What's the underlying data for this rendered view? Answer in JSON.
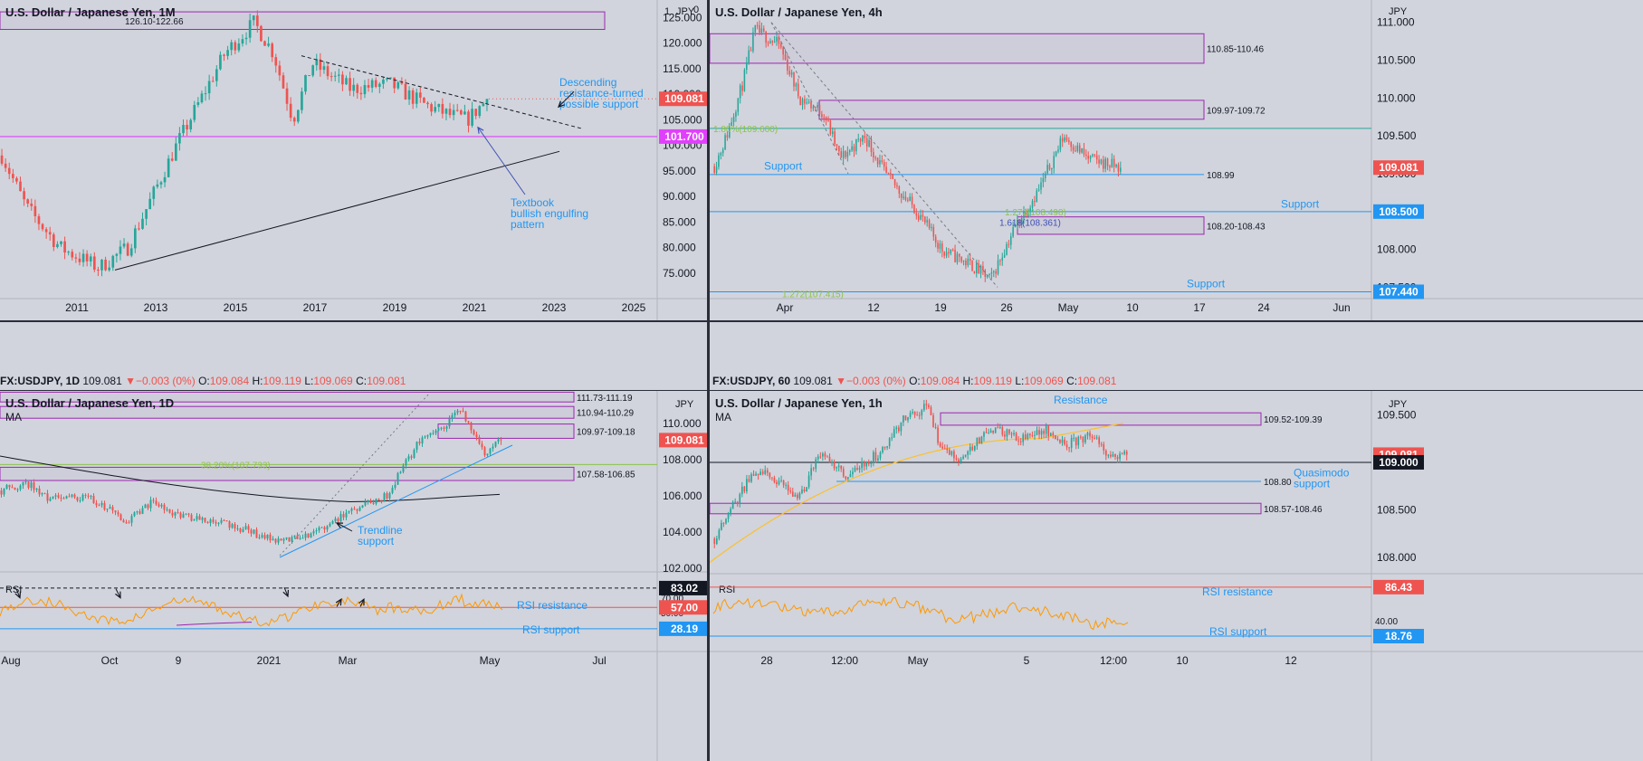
{
  "panels": [
    {
      "id": "p1",
      "title": "U.S. Dollar / Japanese Yen, 1M",
      "ma": "",
      "currency": "JPY",
      "extra_label": "1",
      "extra_label2": "0"
    },
    {
      "id": "p2",
      "title": "U.S. Dollar / Japanese Yen, 4h",
      "ma": "",
      "currency": "JPY"
    },
    {
      "id": "p3",
      "title": "U.S. Dollar / Japanese Yen, 1D",
      "ma": "MA",
      "currency": "JPY"
    },
    {
      "id": "p4",
      "title": "U.S. Dollar / Japanese Yen, 1h",
      "ma": "MA",
      "currency": "JPY"
    }
  ],
  "status_bars": [
    {
      "symbol": "FX:USDJPY, 1D",
      "price": "109.081",
      "arrow": "▼",
      "change": "−0.003 (0%)",
      "o_label": "O:",
      "o": "109.084",
      "h_label": "H:",
      "h": "109.119",
      "l_label": "L:",
      "l": "109.069",
      "c_label": "C:",
      "c": "109.081"
    },
    {
      "symbol": "FX:USDJPY, 60",
      "price": "109.081",
      "arrow": "▼",
      "change": "−0.003 (0%)",
      "o_label": "O:",
      "o": "109.084",
      "h_label": "H:",
      "h": "109.119",
      "l_label": "L:",
      "l": "109.069",
      "c_label": "C:",
      "c": "109.081"
    }
  ],
  "colors": {
    "background": "#d1d4dc",
    "up": "#26a69a",
    "down": "#ef5350",
    "zone": "#9c27b0",
    "support_line": "#2196f3",
    "magenta": "#e040fb",
    "fib_green": "#8bc34a",
    "rsi": "#ff9800",
    "ma_yellow": "#fbc02d",
    "text_blue": "#2196f3",
    "price_tag": "#ef5350"
  },
  "chart_data": [
    {
      "panel": "p1",
      "type": "candlestick",
      "timeframe": "1M",
      "x_ticks": [
        "2011",
        "2013",
        "2015",
        "2017",
        "2019",
        "2021",
        "2023",
        "2025"
      ],
      "y_ticks": [
        "125.000",
        "120.000",
        "115.000",
        "110.000",
        "105.000",
        "100.000",
        "95.000",
        "90.000",
        "85.000",
        "80.000",
        "75.000"
      ],
      "ylim": [
        70,
        127
      ],
      "last_price": "109.081",
      "level_tag": "101.700",
      "zones": [
        {
          "label": "126.10-122.66",
          "top": 126.1,
          "bottom": 122.66
        }
      ],
      "levels": [
        {
          "value": 101.7,
          "color": "magenta"
        }
      ],
      "annotations": [
        {
          "text": "Descending resistance-turned possible support",
          "lines": [
            "Descending",
            "resistance-turned",
            "possible support"
          ]
        },
        {
          "text": "Textbook bullish engulfing pattern",
          "lines": [
            "Textbook",
            "bullish engulfing",
            "pattern"
          ]
        }
      ]
    },
    {
      "panel": "p2",
      "type": "candlestick",
      "timeframe": "4h",
      "x_ticks": [
        "Apr",
        "12",
        "19",
        "26",
        "May",
        "10",
        "17",
        "24",
        "Jun"
      ],
      "y_ticks": [
        "111.000",
        "110.500",
        "110.000",
        "109.500",
        "109.000",
        "108.500",
        "108.000",
        "107.500"
      ],
      "ylim": [
        107.35,
        111.2
      ],
      "last_price": "109.081",
      "level_tags": [
        "108.500",
        "107.440"
      ],
      "zones": [
        {
          "label": "110.85-110.46",
          "top": 110.85,
          "bottom": 110.46
        },
        {
          "label": "109.97-109.72",
          "top": 109.97,
          "bottom": 109.72
        },
        {
          "label": "108.20-108.43",
          "top": 108.43,
          "bottom": 108.2
        }
      ],
      "levels": [
        {
          "label": "108.99",
          "value": 108.99
        },
        {
          "label": "",
          "value": 108.5
        },
        {
          "label": "",
          "value": 107.44
        }
      ],
      "fib_labels": [
        "1.272(107.415)",
        "1.272(108.498)",
        "1.618(108.361)",
        "1.80%(109.600)"
      ],
      "annotations": [
        "Support",
        "Support",
        "Support"
      ]
    },
    {
      "panel": "p3",
      "type": "candlestick",
      "timeframe": "1D",
      "x_ticks": [
        "Aug",
        "Oct",
        "9",
        "2021",
        "Mar",
        "May",
        "Jul"
      ],
      "y_ticks": [
        "110.000",
        "108.000",
        "106.000",
        "104.000",
        "102.000"
      ],
      "ylim": [
        101.8,
        111.8
      ],
      "last_price": "109.081",
      "zones": [
        {
          "label": "111.73-111.19",
          "top": 111.73,
          "bottom": 111.19
        },
        {
          "label": "110.94-110.29",
          "top": 110.94,
          "bottom": 110.29
        },
        {
          "label": "109.97-109.18",
          "top": 109.97,
          "bottom": 109.18
        },
        {
          "label": "107.58-106.85",
          "top": 107.58,
          "bottom": 106.85
        }
      ],
      "fib_labels": [
        "38.20%(107.733)"
      ],
      "annotations": [
        {
          "text": "Trendline support",
          "lines": [
            "Trendline",
            "support"
          ]
        },
        {
          "text": "RSI resistance"
        },
        {
          "text": "RSI support"
        }
      ],
      "rsi": {
        "label": "RSI",
        "ticks": [
          "70.00",
          "50.00"
        ],
        "tags": [
          "83.02",
          "57.00",
          "28.19"
        ]
      }
    },
    {
      "panel": "p4",
      "type": "candlestick",
      "timeframe": "1h",
      "x_ticks": [
        "28",
        "12:00",
        "May",
        "5",
        "12:00",
        "10",
        "12"
      ],
      "y_ticks": [
        "109.500",
        "109.000",
        "108.500",
        "108.000"
      ],
      "ylim": [
        107.85,
        109.75
      ],
      "last_price": "109.081",
      "level_tag": "109.000",
      "zones": [
        {
          "label": "109.52-109.39",
          "top": 109.52,
          "bottom": 109.39
        },
        {
          "label": "108.57-108.46",
          "top": 108.57,
          "bottom": 108.46
        }
      ],
      "levels": [
        {
          "label": "108.80",
          "value": 108.8
        },
        {
          "label": "",
          "value": 109.0
        }
      ],
      "annotations": [
        {
          "text": "Resistance"
        },
        {
          "text": "Quasimodo support",
          "lines": [
            "Quasimodo",
            "support"
          ]
        },
        {
          "text": "RSI resistance"
        },
        {
          "text": "RSI support"
        }
      ],
      "rsi": {
        "label": "RSI",
        "ticks": [
          "40.00"
        ],
        "tags": [
          "86.43",
          "18.76"
        ]
      }
    }
  ]
}
